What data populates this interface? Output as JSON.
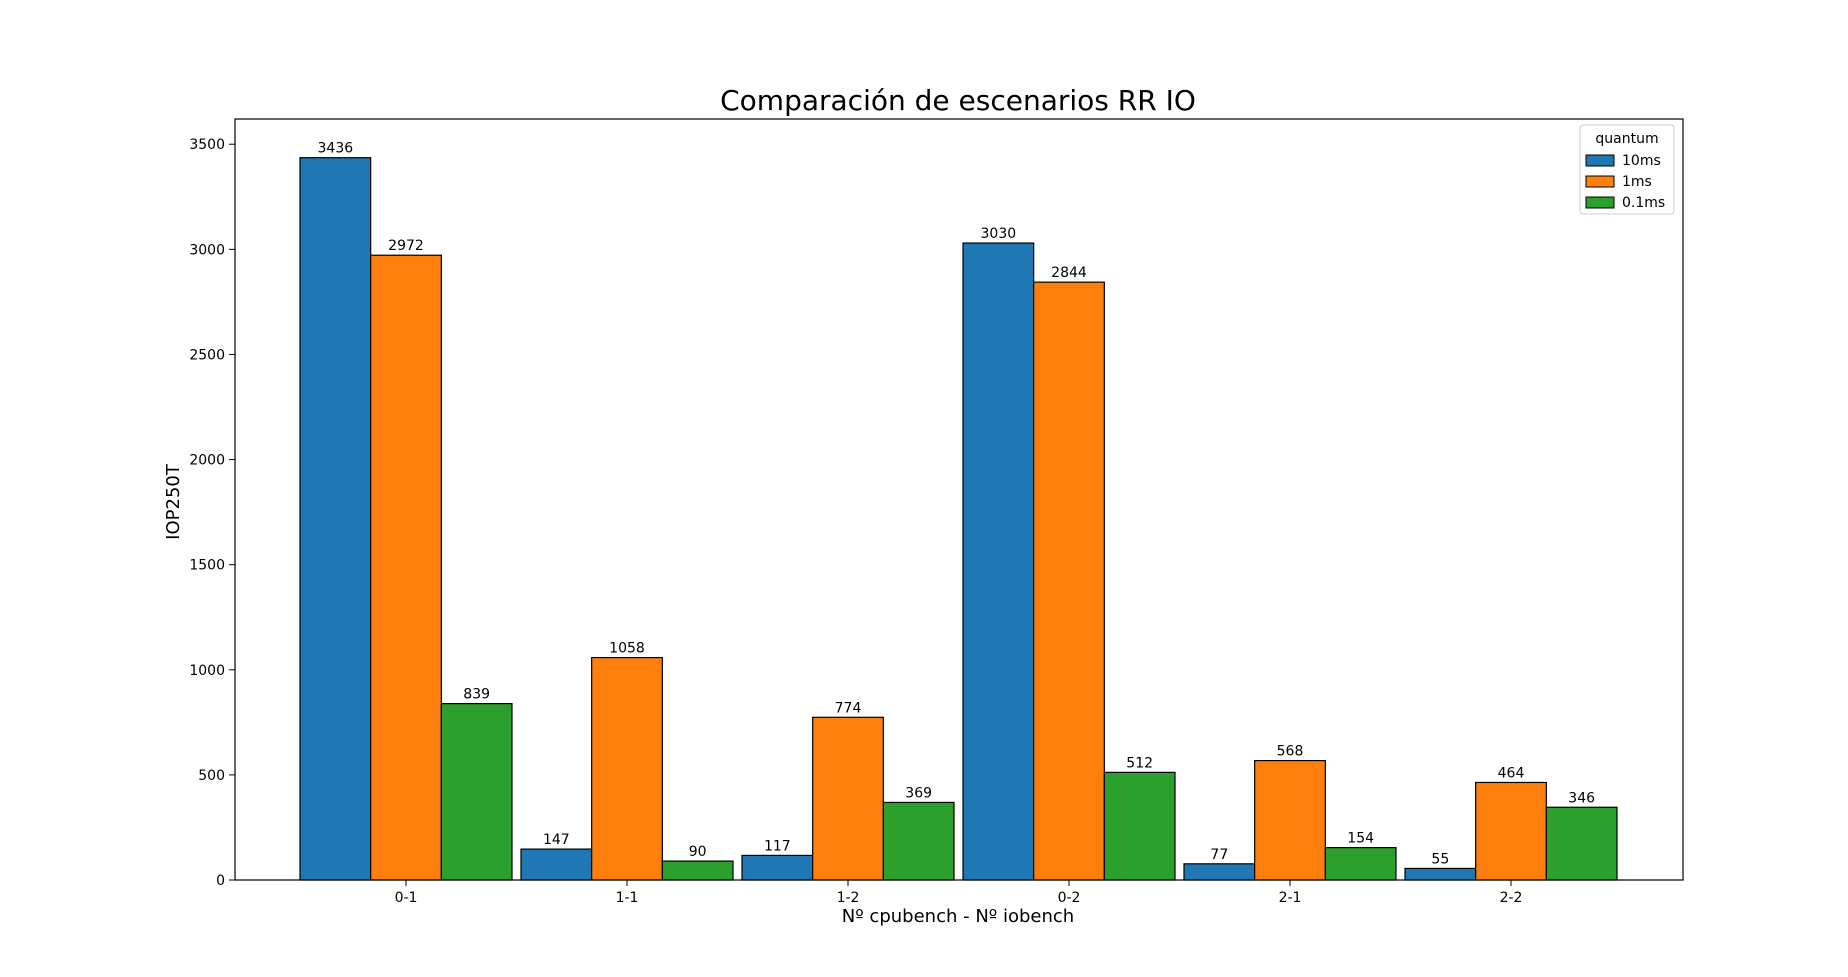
{
  "chart_data": {
    "type": "bar",
    "title": "Comparación de escenarios RR IO",
    "xlabel": "Nº cpubench - Nº iobench",
    "ylabel": "IOP250T",
    "categories": [
      "0-1",
      "1-1",
      "1-2",
      "0-2",
      "2-1",
      "2-2"
    ],
    "ylim": [
      0,
      3620
    ],
    "yticks": [
      0,
      500,
      1000,
      1500,
      2000,
      2500,
      3000,
      3500
    ],
    "legend": {
      "title": "quantum",
      "position": "top-right"
    },
    "grid": false,
    "series": [
      {
        "name": "10ms",
        "color": "#1f77b4",
        "values": [
          3436,
          147,
          117,
          3030,
          77,
          55
        ]
      },
      {
        "name": "1ms",
        "color": "#ff7f0e",
        "values": [
          2972,
          1058,
          774,
          2844,
          568,
          464
        ]
      },
      {
        "name": "0.1ms",
        "color": "#2ca02c",
        "values": [
          839,
          90,
          369,
          512,
          154,
          346
        ]
      }
    ]
  }
}
